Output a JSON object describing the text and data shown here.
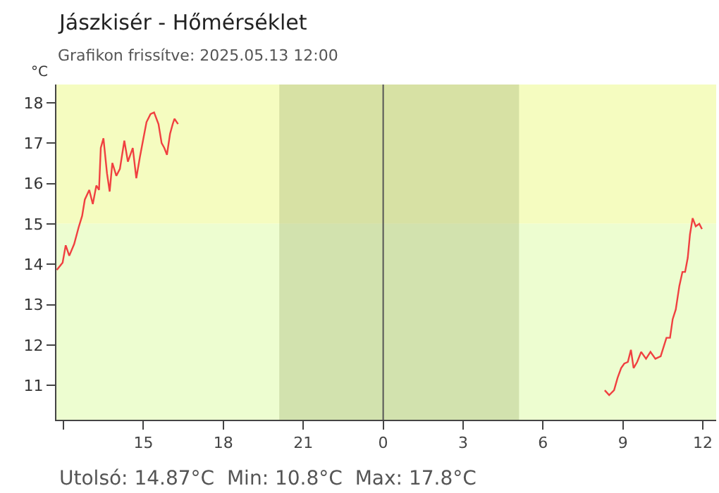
{
  "chart_data": {
    "type": "line",
    "title": "Jászkisér - Hőmérséklet",
    "subtitle": "Grafikon frissítve: 2025.05.13 12:00",
    "ylabel": "°C",
    "x": [
      "2025-05-12T11:45",
      "2025-05-12T11:58",
      "2025-05-12T12:05",
      "2025-05-12T12:13",
      "2025-05-12T12:24",
      "2025-05-12T12:34",
      "2025-05-12T12:42",
      "2025-05-12T12:48",
      "2025-05-12T12:58",
      "2025-05-12T13:06",
      "2025-05-12T13:14",
      "2025-05-12T13:20",
      "2025-05-12T13:24",
      "2025-05-12T13:30",
      "2025-05-12T13:38",
      "2025-05-12T13:44",
      "2025-05-12T13:50",
      "2025-05-12T13:59",
      "2025-05-12T14:07",
      "2025-05-12T14:17",
      "2025-05-12T14:25",
      "2025-05-12T14:36",
      "2025-05-12T14:44",
      "2025-05-12T14:52",
      "2025-05-12T14:59",
      "2025-05-12T15:07",
      "2025-05-12T15:16",
      "2025-05-12T15:24",
      "2025-05-12T15:34",
      "2025-05-12T15:41",
      "2025-05-12T15:47",
      "2025-05-12T15:53",
      "2025-05-12T16:00",
      "2025-05-12T16:06",
      "2025-05-12T16:10",
      "2025-05-12T16:18",
      "2025-05-13T00:00",
      "2025-05-13T08:19",
      "2025-05-13T08:29",
      "2025-05-13T08:40",
      "2025-05-13T08:48",
      "2025-05-13T08:56",
      "2025-05-13T09:03",
      "2025-05-13T09:11",
      "2025-05-13T09:18",
      "2025-05-13T09:24",
      "2025-05-13T09:32",
      "2025-05-13T09:41",
      "2025-05-13T09:52",
      "2025-05-13T10:02",
      "2025-05-13T10:13",
      "2025-05-13T10:25",
      "2025-05-13T10:38",
      "2025-05-13T10:46",
      "2025-05-13T10:52",
      "2025-05-13T10:59",
      "2025-05-13T11:07",
      "2025-05-13T11:14",
      "2025-05-13T11:20",
      "2025-05-13T11:26",
      "2025-05-13T11:31",
      "2025-05-13T11:37",
      "2025-05-13T11:44",
      "2025-05-13T11:52",
      "2025-05-13T11:58"
    ],
    "series": [
      {
        "color": "#f04040",
        "values": [
          13.86,
          14.04,
          14.47,
          14.21,
          14.5,
          14.91,
          15.2,
          15.6,
          15.84,
          15.49,
          15.95,
          15.84,
          16.88,
          17.12,
          16.25,
          15.8,
          16.51,
          16.19,
          16.36,
          17.06,
          16.54,
          16.88,
          16.13,
          16.65,
          17.06,
          17.52,
          17.72,
          17.76,
          17.47,
          17.0,
          16.88,
          16.71,
          17.23,
          17.47,
          17.6,
          17.47,
          null,
          10.88,
          10.76,
          10.88,
          11.19,
          11.43,
          11.54,
          11.58,
          11.88,
          11.43,
          11.58,
          11.83,
          11.66,
          11.83,
          11.66,
          11.72,
          12.18,
          12.18,
          12.64,
          12.88,
          13.46,
          13.81,
          13.81,
          14.16,
          14.74,
          15.14,
          14.94,
          15.0,
          14.87
        ]
      }
    ],
    "xlim": [
      "2025-05-12T11:44",
      "2025-05-13T12:30"
    ],
    "xticks": [
      {
        "value": "2025-05-12T12:00",
        "label": null
      },
      {
        "value": "2025-05-12T15:00",
        "label": "15"
      },
      {
        "value": "2025-05-12T18:00",
        "label": "18"
      },
      {
        "value": "2025-05-12T21:00",
        "label": "21"
      },
      {
        "value": "2025-05-13T00:00",
        "label": "0"
      },
      {
        "value": "2025-05-13T03:00",
        "label": "3"
      },
      {
        "value": "2025-05-13T06:00",
        "label": "6"
      },
      {
        "value": "2025-05-13T09:00",
        "label": "9"
      },
      {
        "value": "2025-05-13T12:00",
        "label": "12"
      }
    ],
    "ylim": [
      10.15,
      18.45
    ],
    "yticks": [
      11,
      12,
      13,
      14,
      15,
      16,
      17,
      18
    ],
    "bands": [
      {
        "axis": "y",
        "from": 15,
        "to": 18.45,
        "color": "#f5fcc0"
      },
      {
        "axis": "y",
        "from": 10.15,
        "to": 15,
        "color": "#edfdd0"
      },
      {
        "axis": "x",
        "from": "2025-05-12T20:06",
        "to": "2025-05-13T05:06",
        "color": "#a0b070"
      }
    ],
    "ref_lines": [
      {
        "axis": "x",
        "value": "2025-05-13T00:00",
        "color": "#555555",
        "line_style": "solid"
      }
    ],
    "annotations": [
      "Utolsó: 14.87°C  Min: 10.8°C  Max: 17.8°C"
    ],
    "grid": false,
    "marker": "none",
    "line_style": "solid"
  }
}
